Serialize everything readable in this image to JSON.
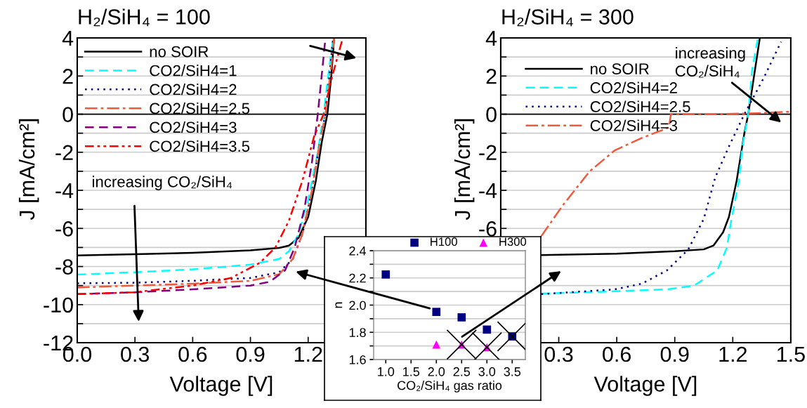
{
  "chart_data": [
    {
      "type": "line",
      "title": "H₂/SiH₄ = 100",
      "xlabel": "Voltage [V]",
      "ylabel": "J [mA/cm²]",
      "xlim": [
        0,
        1.5
      ],
      "ylim": [
        -12,
        4
      ],
      "xticks": [
        {
          "value": 0,
          "label": "0.0"
        },
        {
          "value": 0.3,
          "label": "0.3"
        },
        {
          "value": 0.6,
          "label": "0.6"
        },
        {
          "value": 0.9,
          "label": "0.9"
        },
        {
          "value": 1.2,
          "label": "1.2"
        },
        {
          "value": 1.5,
          "label": null
        }
      ],
      "yticks": [
        -12,
        {
          "value": -11,
          "label": null
        },
        -10,
        {
          "value": -9,
          "label": null
        },
        -8,
        {
          "value": -7,
          "label": null
        },
        -6,
        {
          "value": -5,
          "label": null
        },
        -4,
        {
          "value": -3,
          "label": null
        },
        -2,
        {
          "value": -1,
          "label": null
        },
        0,
        {
          "value": 1,
          "label": null
        },
        2,
        {
          "value": 3,
          "label": null
        },
        4
      ],
      "grid": "y",
      "legend": "top left",
      "ref_lines": [
        {
          "axis": "y",
          "value": 0,
          "color": "#000000"
        }
      ],
      "annotations": [
        "increasing CO₂/SiH₄"
      ],
      "series": [
        {
          "name": "no SOIR",
          "color": "#000000",
          "line_style": "solid",
          "x": [
            0,
            0.3,
            0.6,
            0.9,
            1.05,
            1.1,
            1.15,
            1.2,
            1.24,
            1.27,
            1.3,
            1.32,
            1.335
          ],
          "values": [
            -7.42,
            -7.35,
            -7.28,
            -7.15,
            -7.02,
            -6.9,
            -6.5,
            -5.4,
            -3.5,
            -1.5,
            0,
            2,
            4
          ]
        },
        {
          "name": "CO2/SiH4=1",
          "color": "#00ffff",
          "line_style": "dashed",
          "x": [
            0,
            0.3,
            0.6,
            0.9,
            1.05,
            1.1,
            1.15,
            1.2,
            1.25,
            1.28,
            1.31,
            1.33
          ],
          "values": [
            -8.42,
            -8.3,
            -8.15,
            -7.9,
            -7.6,
            -7.2,
            -6.3,
            -4.5,
            -2,
            0,
            2.5,
            4
          ]
        },
        {
          "name": "CO2/SiH4=2",
          "color": "#000080",
          "line_style": "dotted",
          "x": [
            0,
            0.3,
            0.6,
            0.9,
            1.05,
            1.12,
            1.17,
            1.22,
            1.26,
            1.29,
            1.31,
            1.33
          ],
          "values": [
            -8.88,
            -8.85,
            -8.75,
            -8.6,
            -8.3,
            -7.6,
            -6.3,
            -4,
            -1.5,
            0,
            2,
            4
          ]
        },
        {
          "name": "CO2/SiH4=2.5",
          "color": "#f05a3c",
          "line_style": "dashdot",
          "x": [
            0,
            0.3,
            0.6,
            0.9,
            1.05,
            1.12,
            1.17,
            1.22,
            1.26,
            1.29,
            1.32,
            1.335
          ],
          "values": [
            -9.1,
            -9.0,
            -8.9,
            -8.75,
            -8.4,
            -7.6,
            -6.3,
            -4,
            -1.5,
            0,
            2.5,
            4
          ]
        },
        {
          "name": "CO2/SiH4=3",
          "color": "#800080",
          "line_style": "dashed",
          "x": [
            0,
            0.3,
            0.6,
            0.9,
            1.0,
            1.08,
            1.13,
            1.18,
            1.22,
            1.25,
            1.27,
            1.29
          ],
          "values": [
            -9.45,
            -9.35,
            -9.2,
            -9.0,
            -8.8,
            -8.2,
            -7.0,
            -5,
            -2.5,
            0,
            2,
            4
          ]
        },
        {
          "name": "CO2/SiH4=3.5",
          "color": "#ff0000",
          "line_style": "dashdotdot",
          "x": [
            0,
            0.3,
            0.6,
            0.8,
            0.95,
            1.03,
            1.1,
            1.17,
            1.23,
            1.28,
            1.32,
            1.38
          ],
          "values": [
            -9.45,
            -9.35,
            -9.0,
            -8.6,
            -7.8,
            -7.0,
            -5.6,
            -3.5,
            -1.2,
            0,
            1.8,
            4
          ]
        }
      ]
    },
    {
      "type": "line",
      "title": "H₂/SiH₄ = 300",
      "xlabel": "Voltage [V]",
      "ylabel": "J [mA/cm²]",
      "xlim": [
        0,
        1.5
      ],
      "ylim": [
        -12,
        4
      ],
      "xticks": [
        {
          "value": 0,
          "label": null
        },
        {
          "value": 0.3,
          "label": "0.3"
        },
        {
          "value": 0.6,
          "label": "0.6"
        },
        {
          "value": 0.9,
          "label": "0.9"
        },
        {
          "value": 1.2,
          "label": "1.2"
        },
        {
          "value": 1.5,
          "label": "1.5"
        }
      ],
      "yticks": [
        {
          "value": -12,
          "label": null
        },
        {
          "value": -11,
          "label": null
        },
        {
          "value": -10,
          "label": null
        },
        {
          "value": -9,
          "label": null
        },
        {
          "value": -8,
          "label": null
        },
        {
          "value": -7,
          "label": null
        },
        -6,
        {
          "value": -5,
          "label": null
        },
        -4,
        {
          "value": -3,
          "label": null
        },
        -2,
        {
          "value": -1,
          "label": null
        },
        0,
        {
          "value": 1,
          "label": null
        },
        2,
        {
          "value": 3,
          "label": null
        },
        4
      ],
      "grid": "y",
      "legend": "top left",
      "ref_lines": [
        {
          "axis": "y",
          "value": 0,
          "color": "#000000"
        }
      ],
      "annotations": [
        "increasing\nCO₂/SiH₄"
      ],
      "series": [
        {
          "name": "no SOIR",
          "color": "#000000",
          "line_style": "solid",
          "x": [
            0.21,
            0.6,
            0.9,
            1.05,
            1.1,
            1.15,
            1.18,
            1.22,
            1.26,
            1.28,
            1.31,
            1.34
          ],
          "values": [
            -7.4,
            -7.33,
            -7.2,
            -7.1,
            -6.9,
            -6.2,
            -5.4,
            -3.5,
            -1,
            0,
            2,
            4
          ]
        },
        {
          "name": "CO2/SiH4=2",
          "color": "#00ffff",
          "line_style": "dashed",
          "x": [
            0.21,
            0.6,
            0.86,
            1.0,
            1.12,
            1.17,
            1.19,
            1.23,
            1.25,
            1.28,
            1.3,
            1.33
          ],
          "values": [
            -9.42,
            -9.3,
            -9.2,
            -9.0,
            -8.2,
            -7.0,
            -5.7,
            -3.6,
            -1.7,
            0,
            2.3,
            4
          ]
        },
        {
          "name": "CO2/SiH4=2.5",
          "color": "#000080",
          "line_style": "dotted",
          "x": [
            0.21,
            0.59,
            0.73,
            0.86,
            0.97,
            1.05,
            1.11,
            1.18,
            1.26,
            1.36,
            1.45
          ],
          "values": [
            -9.45,
            -9.2,
            -8.9,
            -8.2,
            -7.1,
            -5.5,
            -3.3,
            -1.7,
            0,
            1.9,
            3.8
          ]
        },
        {
          "name": "CO2/SiH4=3",
          "color": "#f05a3c",
          "line_style": "dashdot",
          "x": [
            0.21,
            0.32,
            0.46,
            0.59,
            0.73,
            0.87,
            0.88,
            1.13,
            1.33,
            1.5
          ],
          "values": [
            -6.4,
            -4.8,
            -3.0,
            -1.9,
            -1.25,
            -0.7,
            0,
            0,
            0.05,
            0.13
          ]
        }
      ]
    },
    {
      "type": "scatter",
      "xlabel": "CO₂/SiH₄ gas ratio",
      "ylabel": "n",
      "xlim": [
        0.76,
        3.76
      ],
      "ylim": [
        1.6,
        2.4
      ],
      "xticks": [
        {
          "value": 1,
          "label": "1.0"
        },
        {
          "value": 1.5,
          "label": "1.5"
        },
        {
          "value": 2,
          "label": "2.0"
        },
        {
          "value": 2.5,
          "label": "2.5"
        },
        {
          "value": 3,
          "label": "3.0"
        },
        {
          "value": 3.5,
          "label": "3.5"
        }
      ],
      "yticks": [
        {
          "value": 1.6,
          "label": "1.6"
        },
        {
          "value": 1.7,
          "label": null
        },
        {
          "value": 1.8,
          "label": "1.8"
        },
        {
          "value": 1.9,
          "label": null
        },
        {
          "value": 2.0,
          "label": "2.0"
        },
        {
          "value": 2.1,
          "label": null
        },
        {
          "value": 2.2,
          "label": "2.2"
        },
        {
          "value": 2.3,
          "label": null
        },
        {
          "value": 2.4,
          "label": "2.4"
        }
      ],
      "grid": "y",
      "legend": "top",
      "series": [
        {
          "name": "H100",
          "color": "#000080",
          "marker": "square",
          "x": [
            1,
            2,
            2.5,
            3,
            3.5
          ],
          "values": [
            2.225,
            1.95,
            1.91,
            1.82,
            1.77
          ]
        },
        {
          "name": "H300",
          "color": "#ff00ff",
          "marker": "triangle",
          "x": [
            2,
            2.5,
            3
          ],
          "values": [
            1.71,
            1.71,
            1.69
          ]
        },
        {
          "color": "#000000",
          "marker": "cross",
          "x": [
            2.5,
            3,
            3.5
          ],
          "values": [
            1.71,
            1.69,
            1.77
          ]
        }
      ]
    }
  ]
}
